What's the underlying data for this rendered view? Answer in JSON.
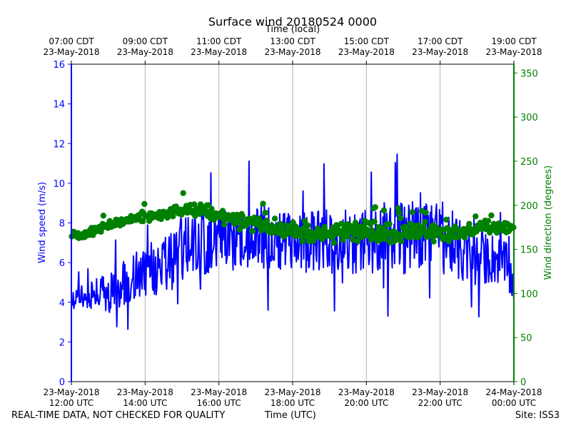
{
  "chart_data": {
    "type": "line",
    "title": "Surface wind 20180524 0000",
    "top_axis_label": "Time (local)",
    "xlabel": "Time (UTC)",
    "ylabel_left": "Wind speed (m/s)",
    "ylabel_right": "Wind direction (degrees)",
    "xlim_hours_utc": [
      12,
      24
    ],
    "ylim_left": [
      0,
      16
    ],
    "ylim_right": [
      0,
      360
    ],
    "yticks_left": [
      0,
      2,
      4,
      6,
      8,
      10,
      12,
      14,
      16
    ],
    "yticks_right": [
      0,
      50,
      100,
      150,
      200,
      250,
      300,
      350
    ],
    "xticks": [
      {
        "hour": 12,
        "date": "23-May-2018",
        "utc": "12:00 UTC",
        "local": "07:00 CDT",
        "local_date": "23-May-2018"
      },
      {
        "hour": 14,
        "date": "23-May-2018",
        "utc": "14:00 UTC",
        "local": "09:00 CDT",
        "local_date": "23-May-2018"
      },
      {
        "hour": 16,
        "date": "23-May-2018",
        "utc": "16:00 UTC",
        "local": "11:00 CDT",
        "local_date": "23-May-2018"
      },
      {
        "hour": 18,
        "date": "23-May-2018",
        "utc": "18:00 UTC",
        "local": "13:00 CDT",
        "local_date": "23-May-2018"
      },
      {
        "hour": 20,
        "date": "23-May-2018",
        "utc": "20:00 UTC",
        "local": "15:00 CDT",
        "local_date": "23-May-2018"
      },
      {
        "hour": 22,
        "date": "23-May-2018",
        "utc": "22:00 UTC",
        "local": "17:00 CDT",
        "local_date": "23-May-2018"
      },
      {
        "hour": 24,
        "date": "24-May-2018",
        "utc": "00:00 UTC",
        "local": "19:00 CDT",
        "local_date": "23-May-2018"
      }
    ],
    "series": [
      {
        "name": "Wind speed",
        "axis": "left",
        "style": "line",
        "color": "#0000ff",
        "x_hours": [
          12.0,
          12.25,
          12.5,
          12.75,
          13.0,
          13.25,
          13.5,
          13.75,
          14.0,
          14.25,
          14.5,
          14.75,
          15.0,
          15.25,
          15.5,
          15.75,
          16.0,
          16.25,
          16.5,
          16.75,
          17.0,
          17.25,
          17.5,
          17.75,
          18.0,
          18.25,
          18.5,
          18.75,
          19.0,
          19.25,
          19.5,
          19.75,
          20.0,
          20.25,
          20.5,
          20.75,
          21.0,
          21.25,
          21.5,
          21.75,
          22.0,
          22.25,
          22.5,
          22.75,
          23.0,
          23.25,
          23.5,
          23.75,
          24.0
        ],
        "values": [
          4.0,
          4.4,
          4.3,
          4.5,
          4.4,
          4.8,
          5.0,
          5.3,
          5.6,
          5.7,
          5.8,
          6.2,
          6.8,
          7.2,
          7.0,
          6.9,
          7.2,
          7.1,
          7.0,
          7.2,
          7.5,
          7.4,
          7.3,
          7.2,
          6.9,
          7.0,
          7.1,
          7.2,
          7.0,
          7.0,
          7.1,
          7.0,
          7.1,
          7.1,
          7.4,
          7.6,
          7.2,
          7.6,
          7.7,
          7.4,
          7.2,
          7.1,
          6.6,
          6.3,
          6.1,
          6.2,
          6.2,
          6.0,
          4.8
        ],
        "noise_amplitude_ms": [
          0.5,
          0.6,
          0.7,
          0.9,
          1.0,
          1.1,
          1.2,
          1.3,
          1.3,
          1.4,
          1.5,
          1.6,
          1.7,
          1.6,
          1.6,
          1.5,
          1.5,
          1.5,
          1.5,
          1.6,
          1.7,
          1.7,
          1.6,
          1.6,
          1.5,
          1.5,
          1.6,
          1.7,
          1.6,
          1.6,
          1.6,
          1.6,
          1.6,
          1.7,
          1.8,
          1.9,
          1.8,
          1.9,
          2.0,
          1.9,
          1.8,
          1.7,
          1.6,
          1.5,
          1.4,
          1.3,
          1.3,
          1.2,
          1.0
        ]
      },
      {
        "name": "Wind direction",
        "axis": "right",
        "style": "markers",
        "color": "#008000",
        "x_hours": [
          12.0,
          12.25,
          12.5,
          12.75,
          13.0,
          13.25,
          13.5,
          13.75,
          14.0,
          14.25,
          14.5,
          14.75,
          15.0,
          15.25,
          15.5,
          15.75,
          16.0,
          16.25,
          16.5,
          16.75,
          17.0,
          17.25,
          17.5,
          17.75,
          18.0,
          18.25,
          18.5,
          18.75,
          19.0,
          19.25,
          19.5,
          19.75,
          20.0,
          20.25,
          20.5,
          20.75,
          21.0,
          21.25,
          21.5,
          21.75,
          22.0,
          22.25,
          22.5,
          22.75,
          23.0,
          23.25,
          23.5,
          23.75,
          24.0
        ],
        "values": [
          168,
          166,
          169,
          172,
          177,
          180,
          182,
          186,
          187,
          188,
          190,
          192,
          196,
          194,
          195,
          193,
          187,
          185,
          183,
          181,
          180,
          179,
          178,
          176,
          171,
          168,
          167,
          166,
          166,
          170,
          171,
          168,
          173,
          172,
          170,
          168,
          167,
          170,
          173,
          169,
          166,
          165,
          170,
          172,
          174,
          176,
          175,
          174,
          174
        ],
        "noise_amplitude_deg": [
          5,
          5,
          6,
          6,
          6,
          6,
          6,
          7,
          7,
          7,
          7,
          7,
          8,
          8,
          8,
          8,
          9,
          10,
          11,
          12,
          13,
          13,
          13,
          13,
          12,
          12,
          12,
          12,
          13,
          13,
          13,
          13,
          13,
          13,
          13,
          13,
          12,
          12,
          12,
          12,
          11,
          11,
          10,
          10,
          9,
          9,
          8,
          8,
          8
        ]
      }
    ]
  },
  "footer": {
    "left_note": "REAL-TIME DATA, NOT CHECKED FOR QUALITY",
    "center_label": "Time (UTC)",
    "site": "Site: ISS3"
  },
  "colors": {
    "speed": "#0000ff",
    "direction": "#008000",
    "grid": "#b0b0b0"
  }
}
